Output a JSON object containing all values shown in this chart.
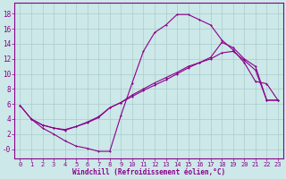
{
  "bg_color": "#cce8e8",
  "line_color": "#8b008b",
  "grid_color": "#aacccc",
  "xlabel": "Windchill (Refroidissement éolien,°C)",
  "xlabel_color": "#8b008b",
  "tick_color": "#8b008b",
  "xlim": [
    -0.5,
    23.5
  ],
  "ylim": [
    -1.2,
    19.5
  ],
  "xticks": [
    0,
    1,
    2,
    3,
    4,
    5,
    6,
    7,
    8,
    9,
    10,
    11,
    12,
    13,
    14,
    15,
    16,
    17,
    18,
    19,
    20,
    21,
    22,
    23
  ],
  "yticks": [
    0,
    2,
    4,
    6,
    8,
    10,
    12,
    14,
    16,
    18
  ],
  "ytick_labels": [
    "-0",
    "2",
    "4",
    "6",
    "8",
    "10",
    "12",
    "14",
    "16",
    "18"
  ],
  "curve1_x": [
    0,
    1,
    2,
    3,
    4,
    5,
    6,
    7,
    8,
    9,
    10,
    11,
    12,
    13,
    14,
    15,
    16,
    17,
    18,
    19,
    20,
    21,
    22,
    23
  ],
  "curve1_y": [
    5.8,
    4.0,
    2.8,
    2.0,
    1.1,
    0.4,
    0.1,
    -0.3,
    -0.3,
    4.5,
    8.8,
    13.0,
    15.5,
    16.5,
    17.9,
    17.9,
    17.2,
    16.5,
    14.5,
    13.2,
    11.5,
    9.0,
    8.7,
    6.5
  ],
  "curve2_x": [
    0,
    1,
    2,
    3,
    4,
    5,
    6,
    7,
    8,
    9,
    10,
    11,
    12,
    13,
    14,
    15,
    16,
    17,
    18,
    19,
    20,
    21,
    22,
    23
  ],
  "curve2_y": [
    5.8,
    4.0,
    3.2,
    2.8,
    2.5,
    3.0,
    3.5,
    4.2,
    5.5,
    6.2,
    7.2,
    8.0,
    8.8,
    9.5,
    10.2,
    11.0,
    11.5,
    12.2,
    14.2,
    13.5,
    12.0,
    11.0,
    6.5,
    6.5
  ],
  "curve3_x": [
    1,
    2,
    3,
    4,
    5,
    6,
    7,
    8,
    9,
    10,
    11,
    12,
    13,
    14,
    15,
    16,
    17,
    18,
    19,
    20,
    21,
    22,
    23
  ],
  "curve3_y": [
    4.0,
    3.2,
    2.8,
    2.6,
    3.0,
    3.6,
    4.3,
    5.5,
    6.2,
    7.0,
    7.8,
    8.5,
    9.2,
    10.0,
    10.8,
    11.5,
    12.0,
    12.8,
    13.0,
    11.8,
    10.5,
    6.5,
    6.5
  ]
}
